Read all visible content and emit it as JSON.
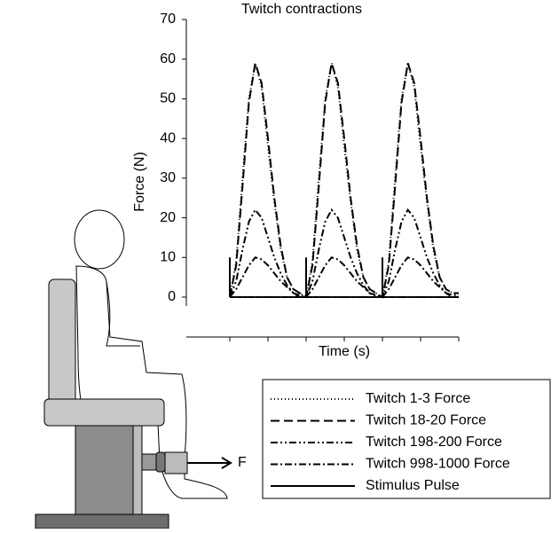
{
  "chart_data": {
    "type": "line",
    "title": "Twitch contractions",
    "y_label": "Force (N)",
    "x_label": "Time (s)",
    "categories": [
      null,
      null,
      null,
      null,
      null,
      null,
      null,
      null,
      null,
      null,
      null,
      null,
      null,
      null,
      null,
      null,
      null,
      null,
      null,
      null,
      null,
      null,
      null,
      null,
      null,
      null,
      null,
      null,
      null,
      null,
      null,
      null,
      null,
      null,
      null,
      null,
      null
    ],
    "series": [
      {
        "name": "Twitch 1-3 Force",
        "color": "#000000",
        "dash": "1,3",
        "values": [
          0,
          9,
          30,
          50,
          59,
          53,
          38,
          24,
          12,
          5,
          2,
          1,
          0,
          9,
          30,
          50,
          59,
          53,
          38,
          24,
          12,
          5,
          2,
          1,
          0,
          9,
          30,
          50,
          59,
          53,
          38,
          24,
          12,
          5,
          2,
          1,
          1
        ]
      },
      {
        "name": "Twitch 18-20 Force",
        "color": "#000000",
        "dash": "10,5",
        "values": [
          0,
          8,
          28,
          49,
          59,
          54,
          40,
          25,
          13,
          5,
          2,
          1,
          0,
          8,
          28,
          49,
          59,
          54,
          40,
          25,
          13,
          5,
          2,
          1,
          0,
          8,
          28,
          49,
          59,
          54,
          40,
          25,
          13,
          5,
          2,
          1,
          1
        ]
      },
      {
        "name": "Twitch 198-200 Force",
        "color": "#000000",
        "dash": "8,3,2,3,2,3",
        "values": [
          0,
          4,
          12,
          19,
          22,
          20,
          15,
          10,
          6,
          3,
          1,
          0,
          0,
          4,
          12,
          19,
          22,
          20,
          15,
          10,
          6,
          3,
          1,
          0,
          0,
          4,
          12,
          19,
          22,
          20,
          15,
          10,
          6,
          3,
          1,
          0,
          0
        ]
      },
      {
        "name": "Twitch 998-1000 Force",
        "color": "#000000",
        "dash": "8,3,2,3",
        "values": [
          0,
          2,
          5,
          8,
          10,
          9.5,
          8,
          6,
          4,
          2.5,
          1,
          0.5,
          0,
          2,
          5,
          8,
          10,
          9.5,
          8,
          6,
          4,
          2.5,
          1,
          0.5,
          0,
          2,
          5,
          8,
          10,
          9.5,
          8,
          6,
          4,
          2.5,
          1,
          0.5,
          0.5
        ]
      },
      {
        "name": "Stimulus Pulse",
        "color": "#000000",
        "style": "pulse",
        "values": [
          10,
          0,
          0,
          0,
          0,
          0,
          0,
          0,
          0,
          0,
          0,
          0,
          10,
          0,
          0,
          0,
          0,
          0,
          0,
          0,
          0,
          0,
          0,
          0,
          10,
          0,
          0,
          0,
          0,
          0,
          0,
          0,
          0,
          0,
          0,
          0,
          0
        ]
      }
    ],
    "ylim": [
      0,
      70
    ],
    "yticks": [
      0,
      10,
      20,
      30,
      40,
      50,
      60,
      70
    ]
  },
  "illustration": {
    "force_label": "F"
  }
}
